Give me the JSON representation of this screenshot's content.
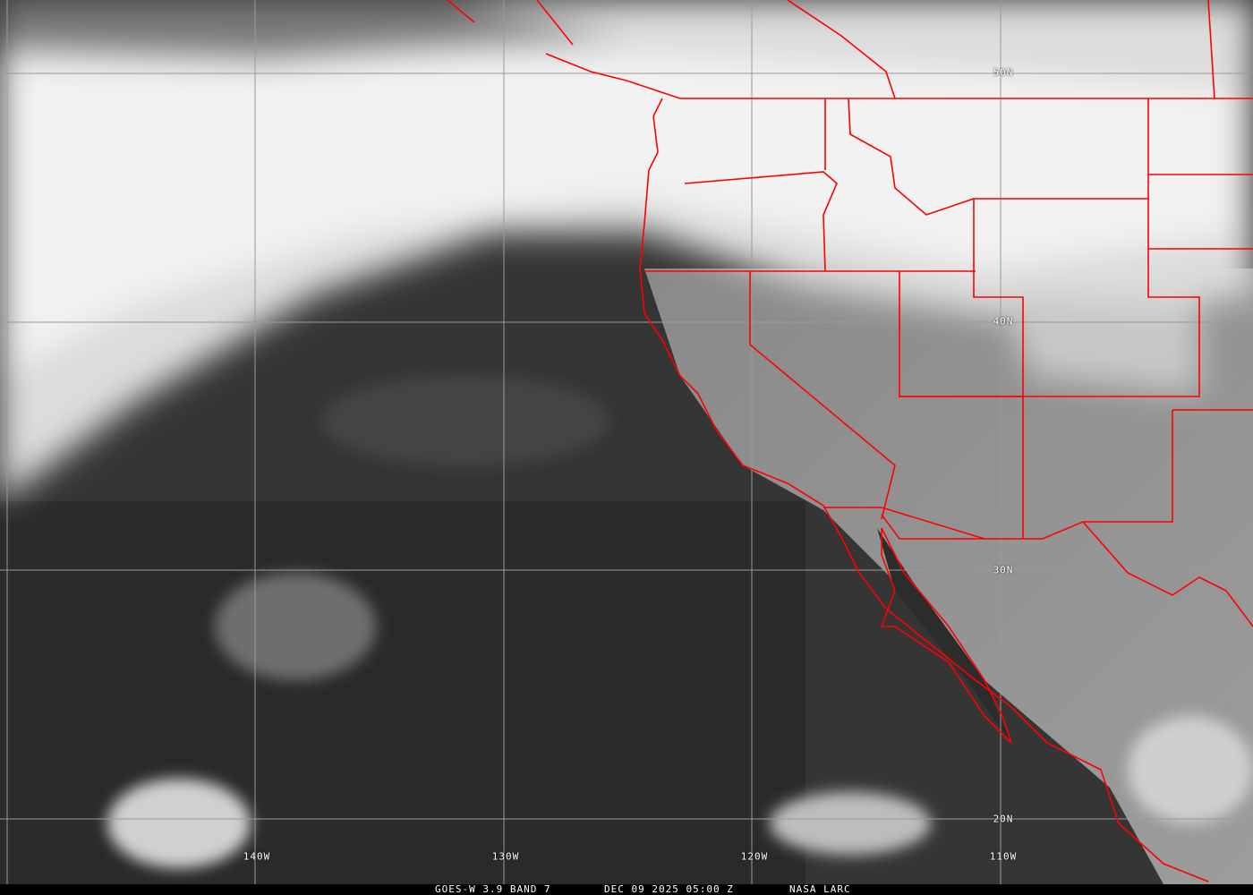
{
  "caption": {
    "satellite": "GOES-W 3.9 BAND 7",
    "datetime": "DEC 09 2025 05:00 Z",
    "source": "NASA LARC"
  },
  "longitude_labels": [
    "140W",
    "130W",
    "120W",
    "110W"
  ],
  "latitude_labels": [
    "50N",
    "40N",
    "30N",
    "20N"
  ],
  "colors": {
    "borders": "#ff0000",
    "grid": "#9a9a9a",
    "ocean": "#2e2e2e",
    "clouds": "#f0f0f0"
  }
}
